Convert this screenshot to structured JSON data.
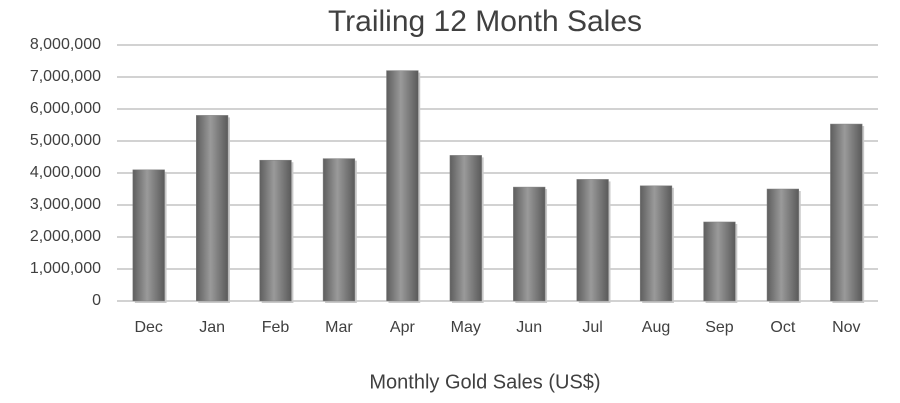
{
  "chart_data": {
    "type": "bar",
    "title": "Trailing 12 Month Sales",
    "x_label": "Monthly Gold Sales (US$)",
    "categories": [
      "Dec",
      "Jan",
      "Feb",
      "Mar",
      "Apr",
      "May",
      "Jun",
      "Jul",
      "Aug",
      "Sep",
      "Oct",
      "Nov"
    ],
    "values": [
      4100000,
      5800000,
      4400000,
      4450000,
      7200000,
      4550000,
      3560000,
      3800000,
      3600000,
      2470000,
      3500000,
      5530000
    ],
    "color": "#808080",
    "ylim": [
      0,
      8000000
    ],
    "yticks": [
      0,
      {
        "value": 1000000,
        "label": "1,000,000"
      },
      {
        "value": 2000000,
        "label": "2,000,000"
      },
      {
        "value": 3000000,
        "label": "3,000,000"
      },
      {
        "value": 4000000,
        "label": "4,000,000"
      },
      {
        "value": 5000000,
        "label": "5,000,000"
      },
      {
        "value": 6000000,
        "label": "6,000,000"
      },
      {
        "value": 7000000,
        "label": "7,000,000"
      },
      {
        "value": 8000000,
        "label": "8,000,000"
      }
    ],
    "grid": true
  }
}
